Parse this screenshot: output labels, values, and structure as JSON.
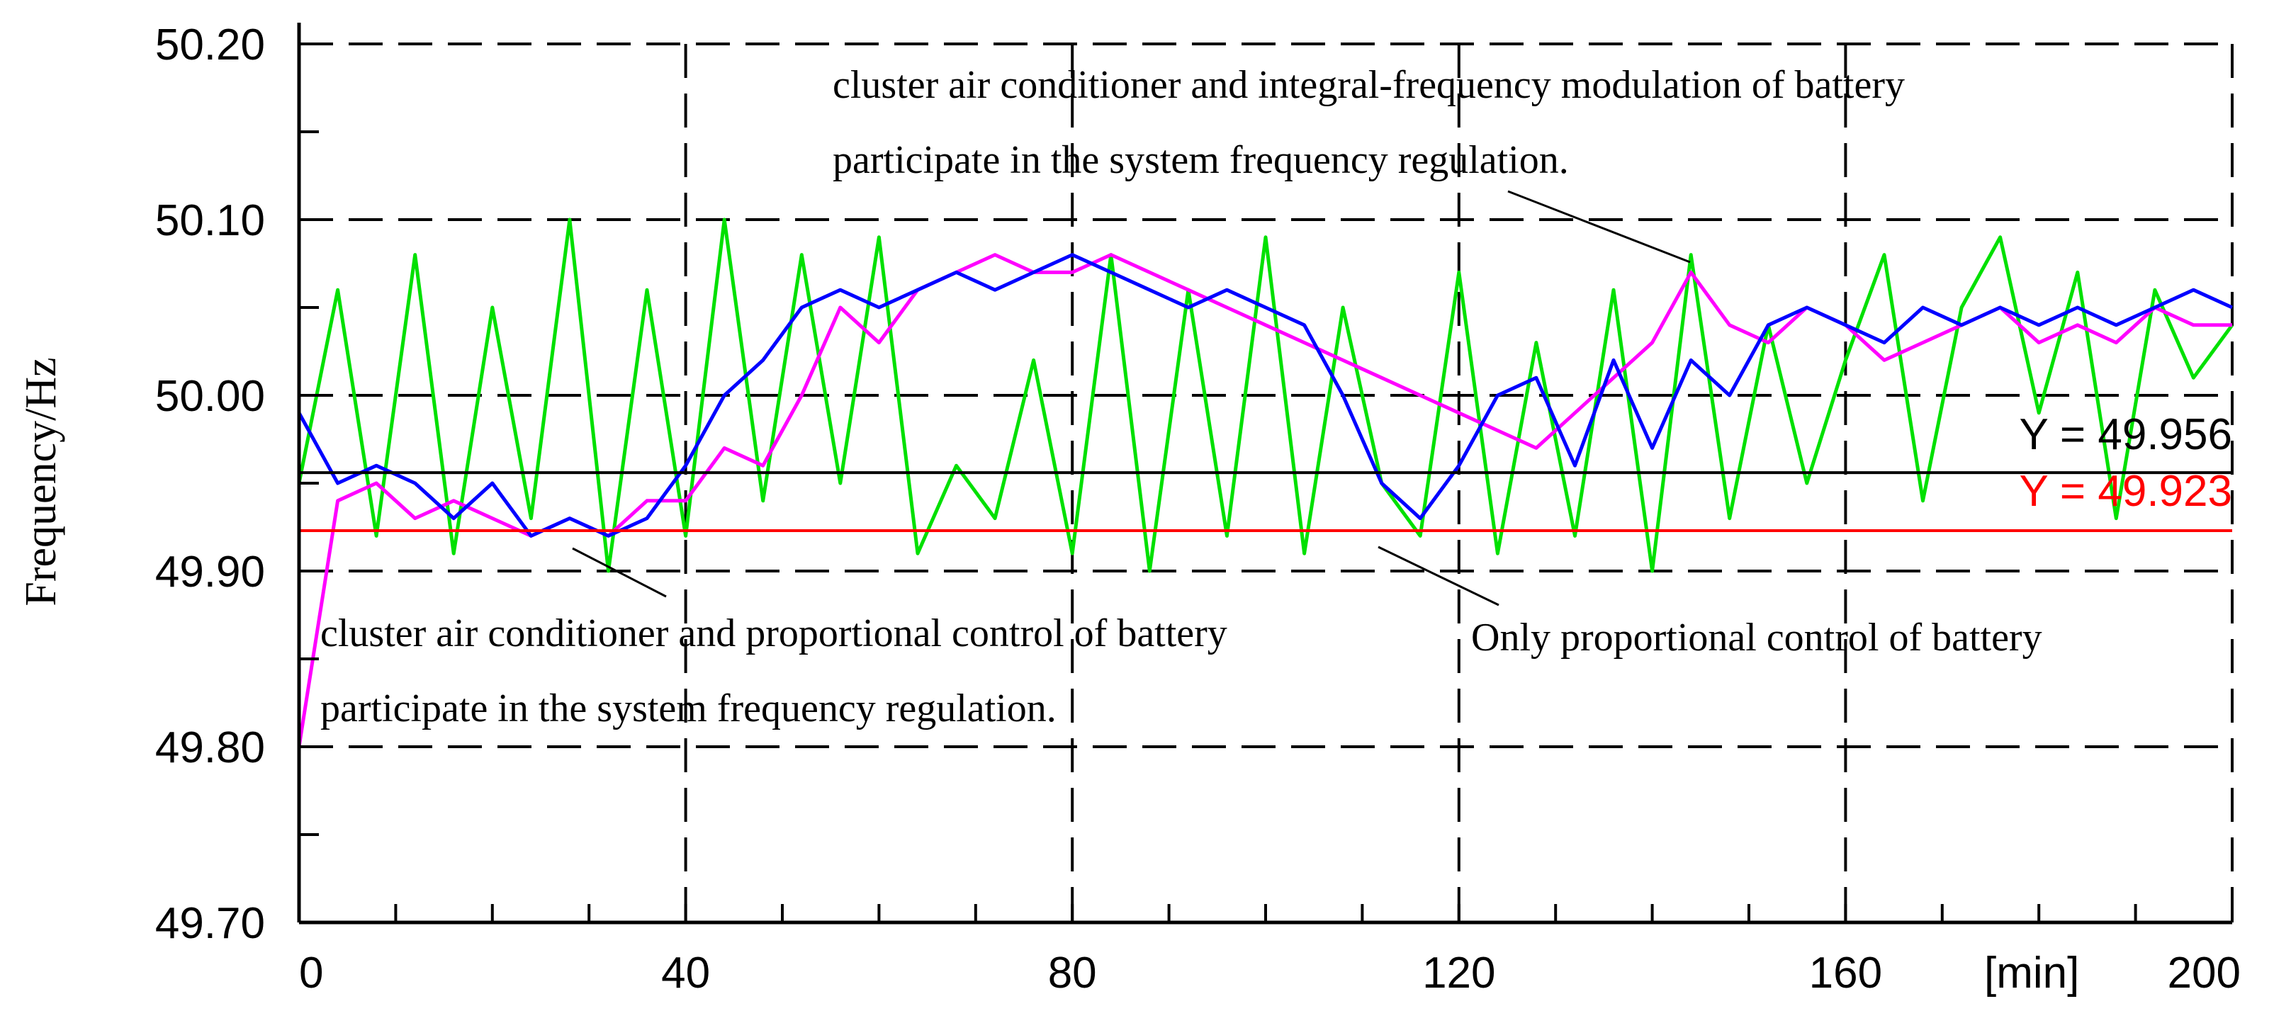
{
  "chart_data": {
    "type": "line",
    "ylabel": "Frequency/Hz",
    "x_unit_label": "[min]",
    "xlim": [
      0,
      200
    ],
    "ylim": [
      49.7,
      50.2
    ],
    "x_ticks": [
      0,
      40,
      80,
      120,
      160,
      200
    ],
    "y_ticks": [
      49.7,
      49.8,
      49.9,
      50.0,
      50.1,
      50.2
    ],
    "y_tick_labels": [
      "49.70",
      "49.80",
      "49.90",
      "50.00",
      "50.10",
      "50.20"
    ],
    "grid": true,
    "reference_lines": [
      {
        "label": "Y = 49.956",
        "y": 49.956,
        "color": "#000000"
      },
      {
        "label": "Y = 49.923",
        "y": 49.923,
        "color": "#ff0000"
      }
    ],
    "series": [
      {
        "color": "#00e000",
        "x": [
          0,
          4,
          8,
          12,
          16,
          20,
          24,
          28,
          32,
          36,
          40,
          44,
          48,
          52,
          56,
          60,
          64,
          68,
          72,
          76,
          80,
          84,
          88,
          92,
          96,
          100,
          104,
          108,
          112,
          116,
          120,
          124,
          128,
          132,
          136,
          140,
          144,
          148,
          152,
          156,
          160,
          164,
          168,
          172,
          176,
          180,
          184,
          188,
          192,
          196,
          200
        ],
        "values": [
          49.95,
          50.06,
          49.92,
          50.08,
          49.91,
          50.05,
          49.93,
          50.1,
          49.9,
          50.06,
          49.92,
          50.1,
          49.94,
          50.08,
          49.95,
          50.09,
          49.91,
          49.96,
          49.93,
          50.02,
          49.91,
          50.08,
          49.9,
          50.06,
          49.92,
          50.09,
          49.91,
          50.05,
          49.95,
          49.92,
          50.07,
          49.91,
          50.03,
          49.92,
          50.06,
          49.9,
          50.08,
          49.93,
          50.04,
          49.95,
          50.02,
          50.08,
          49.94,
          50.05,
          50.09,
          49.99,
          50.07,
          49.93,
          50.06,
          50.01,
          50.04
        ]
      },
      {
        "color": "#ff00ff",
        "x": [
          0,
          4,
          8,
          12,
          16,
          20,
          24,
          28,
          32,
          36,
          40,
          44,
          48,
          52,
          56,
          60,
          64,
          68,
          72,
          76,
          80,
          84,
          88,
          92,
          96,
          100,
          104,
          108,
          112,
          116,
          120,
          124,
          128,
          132,
          136,
          140,
          144,
          148,
          152,
          156,
          160,
          164,
          168,
          172,
          176,
          180,
          184,
          188,
          192,
          196,
          200
        ],
        "values": [
          49.8,
          49.94,
          49.95,
          49.93,
          49.94,
          49.93,
          49.92,
          49.93,
          49.92,
          49.94,
          49.94,
          49.97,
          49.96,
          50.0,
          50.05,
          50.03,
          50.06,
          50.07,
          50.08,
          50.07,
          50.07,
          50.08,
          50.07,
          50.06,
          50.05,
          50.04,
          50.03,
          50.02,
          50.01,
          50.0,
          49.99,
          49.98,
          49.97,
          49.99,
          50.01,
          50.03,
          50.07,
          50.04,
          50.03,
          50.05,
          50.04,
          50.02,
          50.03,
          50.04,
          50.05,
          50.03,
          50.04,
          50.03,
          50.05,
          50.04,
          50.04
        ]
      },
      {
        "color": "#0000ff",
        "x": [
          0,
          4,
          8,
          12,
          16,
          20,
          24,
          28,
          32,
          36,
          40,
          44,
          48,
          52,
          56,
          60,
          64,
          68,
          72,
          76,
          80,
          84,
          88,
          92,
          96,
          100,
          104,
          108,
          112,
          116,
          120,
          124,
          128,
          132,
          136,
          140,
          144,
          148,
          152,
          156,
          160,
          164,
          168,
          172,
          176,
          180,
          184,
          188,
          192,
          196,
          200
        ],
        "values": [
          49.99,
          49.95,
          49.96,
          49.95,
          49.93,
          49.95,
          49.92,
          49.93,
          49.92,
          49.93,
          49.96,
          50.0,
          50.02,
          50.05,
          50.06,
          50.05,
          50.06,
          50.07,
          50.06,
          50.07,
          50.08,
          50.07,
          50.06,
          50.05,
          50.06,
          50.05,
          50.04,
          50.0,
          49.95,
          49.93,
          49.96,
          50.0,
          50.01,
          49.96,
          50.02,
          49.97,
          50.02,
          50.0,
          50.04,
          50.05,
          50.04,
          50.03,
          50.05,
          50.04,
          50.05,
          50.04,
          50.05,
          50.04,
          50.05,
          50.06,
          50.05
        ]
      }
    ],
    "annotations": [
      {
        "lines": [
          "cluster air conditioner and integral-frequency modulation of battery",
          "participate in the system frequency regulation."
        ]
      },
      {
        "lines": [
          "cluster air conditioner and proportional control of battery",
          "participate in the system frequency regulation."
        ]
      },
      {
        "lines": [
          "Only proportional control of battery"
        ]
      }
    ]
  }
}
